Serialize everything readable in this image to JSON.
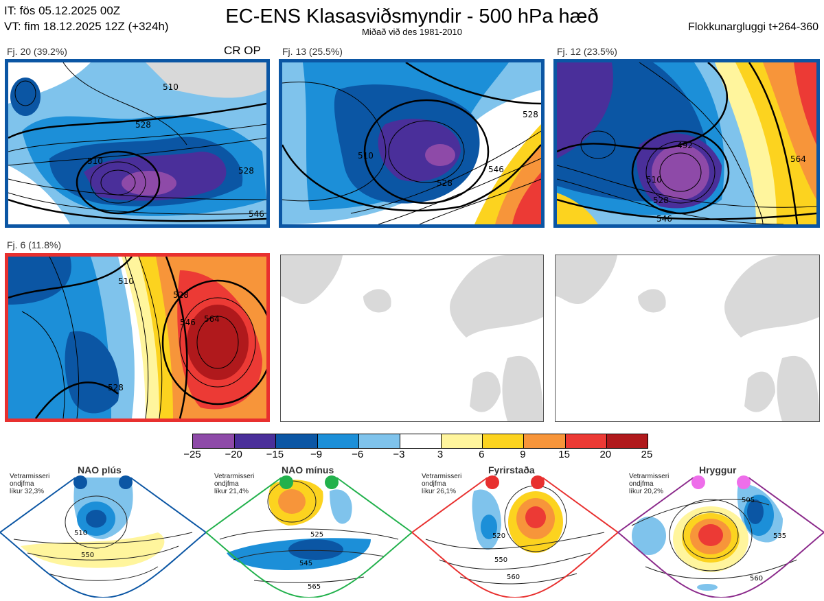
{
  "header": {
    "it": "IT: fös 05.12.2025 00Z",
    "vt": "VT: fim 18.12.2025 12Z  (+324h)",
    "title": "EC-ENS Klasasviðsmyndir - 500 hPa hæð",
    "subtitle": "Miðað við des 1981-2010",
    "window": "Flokkunargluggi t+264-360"
  },
  "clusters": [
    {
      "label": "Fj. 20 (39.2%)",
      "frame_color": "#0b56a4",
      "op_label": "CR OP",
      "contours": [
        "510",
        "528",
        "510",
        "528",
        "546"
      ]
    },
    {
      "label": "Fj. 13 (25.5%)",
      "frame_color": "#0b56a4",
      "contours": [
        "510",
        "528",
        "546",
        "528"
      ]
    },
    {
      "label": "Fj. 12 (23.5%)",
      "frame_color": "#0b56a4",
      "contours": [
        "492",
        "510",
        "528",
        "546",
        "564"
      ]
    },
    {
      "label": "Fj. 6 (11.8%)",
      "frame_color": "#e8302f",
      "contours": [
        "510",
        "528",
        "546",
        "564",
        "528"
      ]
    }
  ],
  "colorbar": {
    "ticks": [
      "−25",
      "−20",
      "−15",
      "−9",
      "−6",
      "−3",
      "3",
      "6",
      "9",
      "15",
      "20",
      "25"
    ],
    "colors": [
      "#8e4aa8",
      "#4a2f9a",
      "#0b56a4",
      "#1c8fd8",
      "#7fc3ec",
      "#ffffff",
      "#fff59d",
      "#fcd31f",
      "#f7953a",
      "#ec3a35",
      "#b0191c"
    ]
  },
  "regimes": [
    {
      "title": "NAO plús",
      "note": [
        "Vetrarmisseri",
        "ondjfma",
        "líkur 32,3%"
      ],
      "dot_color": "#0b56a4",
      "frame_color": "#0b56a4",
      "contours": [
        "510",
        "550"
      ]
    },
    {
      "title": "NAO mínus",
      "note": [
        "Vetrarmisseri",
        "ondjfma",
        "líkur 21,4%"
      ],
      "dot_color": "#22b14c",
      "frame_color": "#22b14c",
      "contours": [
        "525",
        "545",
        "565"
      ]
    },
    {
      "title": "Fyrirstaða",
      "note": [
        "Vetrarmisseri",
        "ondjfma",
        "líkur 26,1%"
      ],
      "dot_color": "#e8302f",
      "frame_color": "#e8302f",
      "contours": [
        "520",
        "550",
        "560"
      ]
    },
    {
      "title": "Hryggur",
      "note": [
        "Vetrarmisseri",
        "ondjfma",
        "líkur 20,2%"
      ],
      "dot_color": "#ee6eea",
      "frame_color": "#8b2a8b",
      "contours": [
        "505",
        "535",
        "560"
      ]
    }
  ]
}
